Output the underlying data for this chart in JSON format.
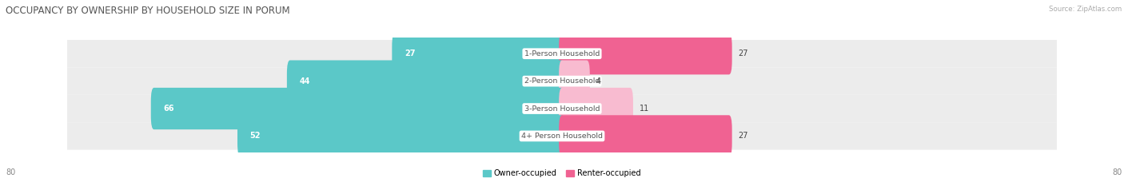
{
  "title": "OCCUPANCY BY OWNERSHIP BY HOUSEHOLD SIZE IN PORUM",
  "source": "Source: ZipAtlas.com",
  "categories": [
    "1-Person Household",
    "2-Person Household",
    "3-Person Household",
    "4+ Person Household"
  ],
  "owner_values": [
    27,
    44,
    66,
    52
  ],
  "renter_values": [
    27,
    4,
    11,
    27
  ],
  "owner_color": "#5bc8c8",
  "renter_color_strong": "#f06292",
  "renter_color_light": "#f8bbd0",
  "owner_label": "Owner-occupied",
  "renter_label": "Renter-occupied",
  "axis_max": 80,
  "bg_color": "#ffffff",
  "row_bg": "#ececec",
  "title_fontsize": 8.5,
  "bar_height": 0.52,
  "figsize": [
    14.06,
    2.33
  ],
  "dpi": 100
}
